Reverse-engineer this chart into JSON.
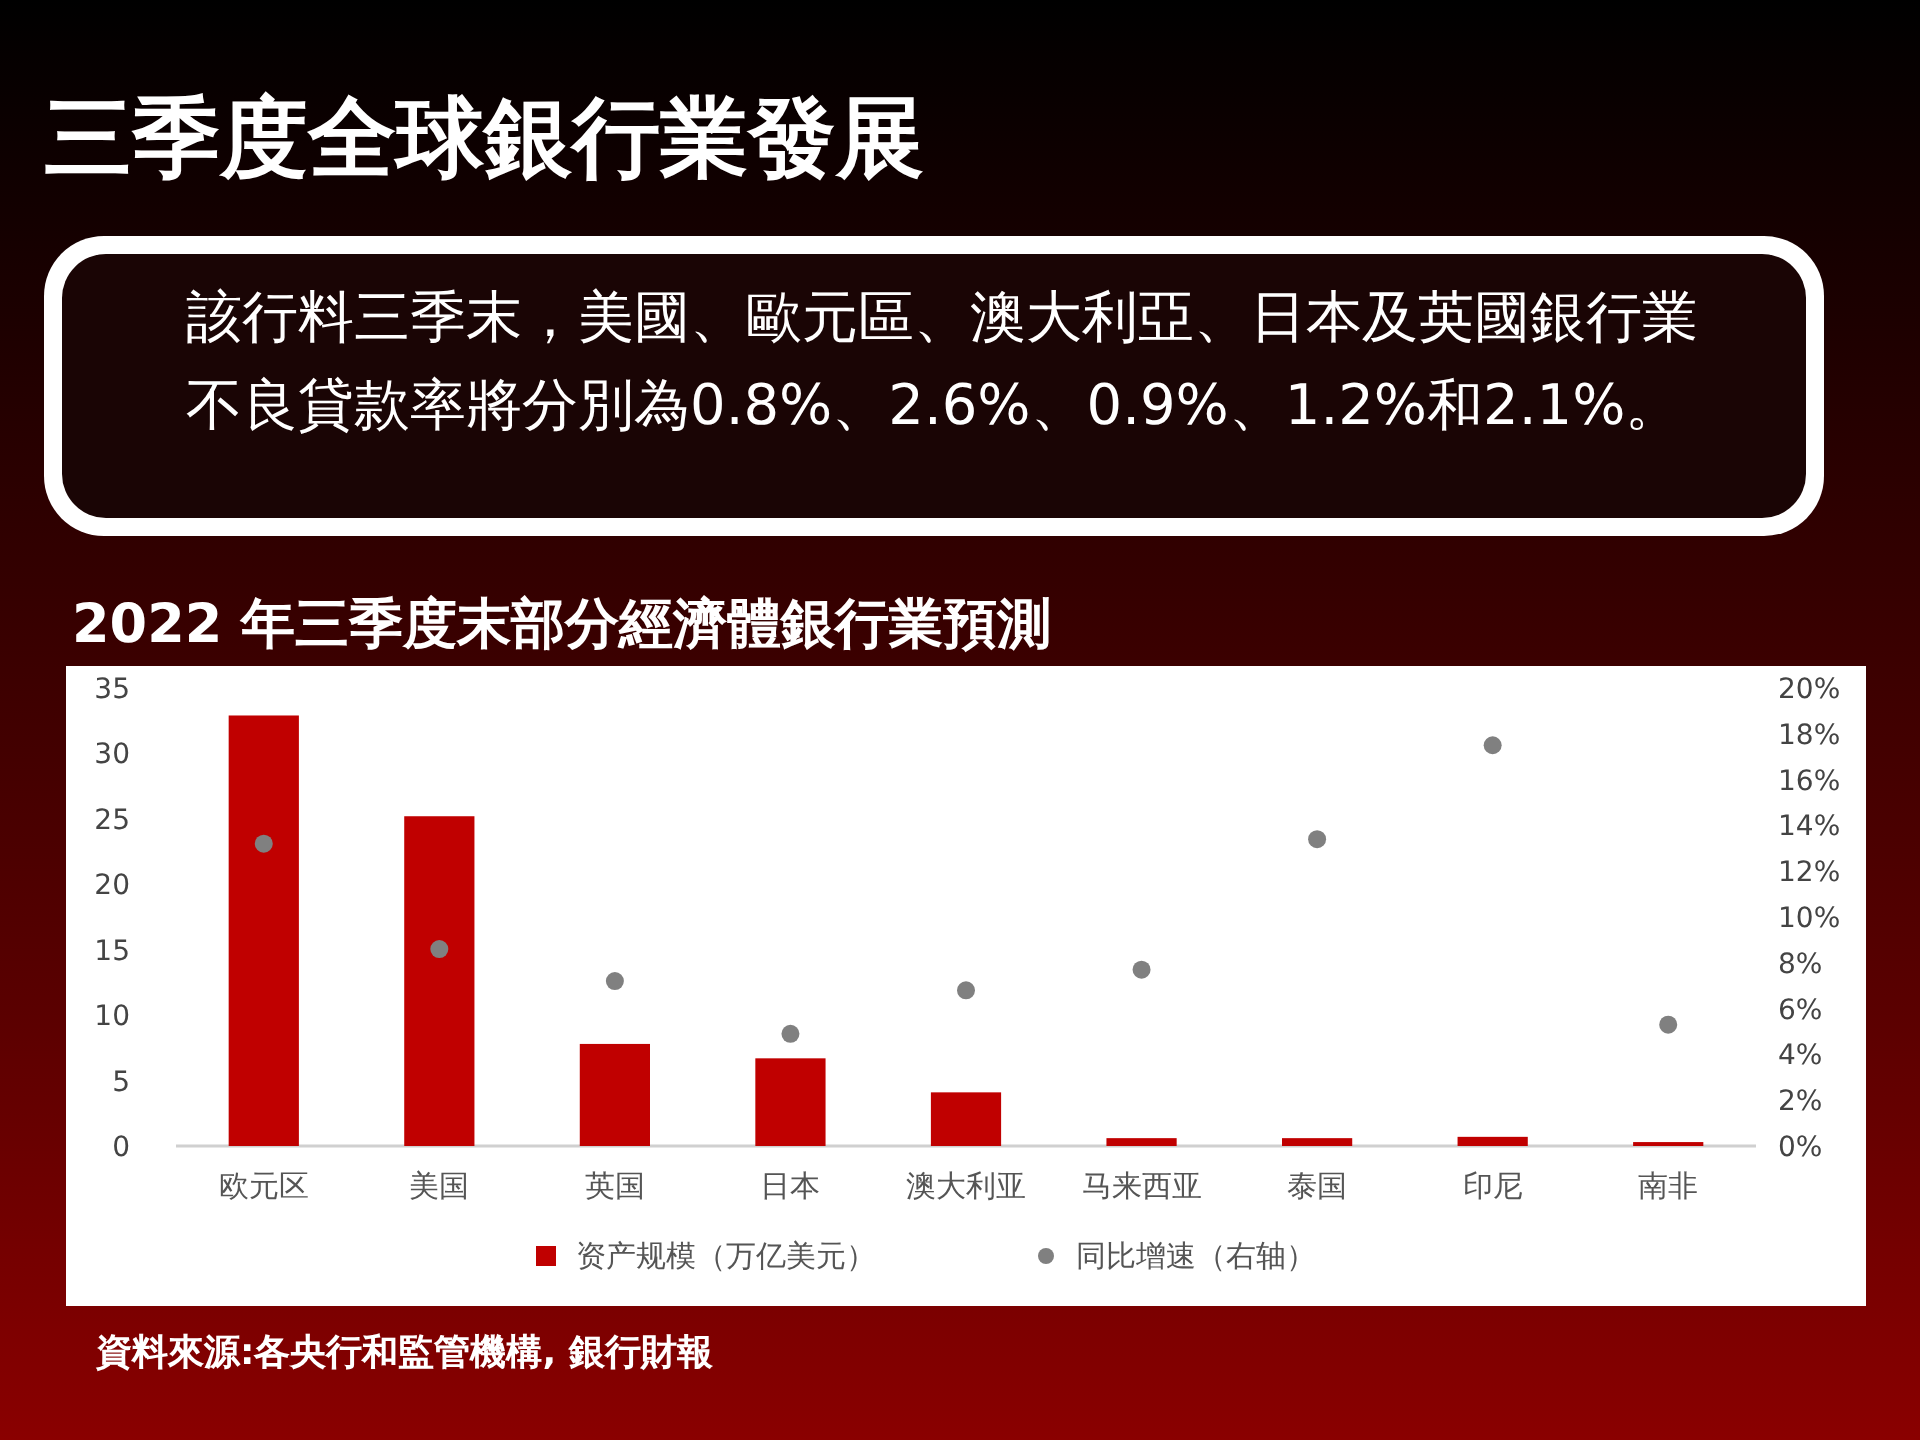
{
  "chart_data": {
    "type": "bar",
    "title": "三季度全球銀行業發展",
    "subtitle": "2022 年三季度末部分經濟體銀行業預測",
    "annotations": [
      "該行料三季末，美國、歐元區、澳大利亞、日本及英國銀行業不良貸款率將分別為0.8%、2.6%、0.9%、1.2%和2.1%。",
      "資料來源:各央行和監管機構, 銀行財報"
    ],
    "categories": [
      "欧元区",
      "美国",
      "英国",
      "日本",
      "澳大利亚",
      "马来西亚",
      "泰国",
      "印尼",
      "南非"
    ],
    "series": [
      {
        "name": "资产规模（万亿美元）",
        "type": "bar",
        "color": "#c00000",
        "values": [
          32.9,
          25.2,
          7.8,
          6.7,
          4.1,
          0.6,
          0.6,
          0.7,
          0.3
        ]
      },
      {
        "name": "同比增速（右轴）",
        "type": "scatter",
        "axis": "y2",
        "color": "#808080",
        "marker": "circle",
        "values": [
          13.2,
          8.6,
          7.2,
          4.9,
          6.8,
          7.7,
          13.4,
          17.5,
          5.3
        ]
      }
    ],
    "ylim": [
      0,
      35
    ],
    "yticks": [
      0,
      5,
      10,
      15,
      20,
      25,
      30,
      35
    ],
    "y2lim": [
      0,
      20
    ],
    "y2ticks": [
      {
        "value": 0,
        "label": "0%"
      },
      {
        "value": 2,
        "label": "2%"
      },
      {
        "value": 4,
        "label": "4%"
      },
      {
        "value": 6,
        "label": "6%"
      },
      {
        "value": 8,
        "label": "8%"
      },
      {
        "value": 10,
        "label": "10%"
      },
      {
        "value": 12,
        "label": "12%"
      },
      {
        "value": 14,
        "label": "14%"
      },
      {
        "value": 16,
        "label": "16%"
      },
      {
        "value": 18,
        "label": "18%"
      },
      {
        "value": 20,
        "label": "20%"
      }
    ],
    "grid": false,
    "legend": "bottom"
  }
}
